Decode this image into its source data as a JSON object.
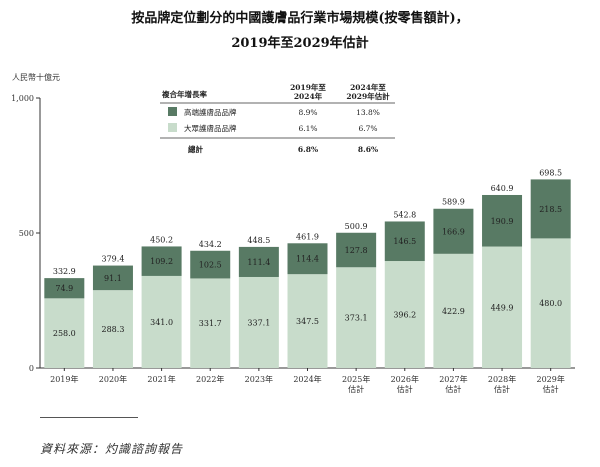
{
  "chart_data": {
    "type": "bar",
    "stacked": true,
    "title_line1": "按品牌定位劃分的中國護膚品行業市場規模(按零售額計)，",
    "title_line2": "2019年至2029年估計",
    "ylabel": "人民幣十億元",
    "ylim": [
      0,
      1000
    ],
    "yticks": [
      "0",
      "500",
      "1,000"
    ],
    "ytick_values": [
      0,
      500,
      1000
    ],
    "categories": [
      [
        "2019年"
      ],
      [
        "2020年"
      ],
      [
        "2021年"
      ],
      [
        "2022年"
      ],
      [
        "2023年"
      ],
      [
        "2024年"
      ],
      [
        "2025年",
        "估計"
      ],
      [
        "2026年",
        "估計"
      ],
      [
        "2027年",
        "估計"
      ],
      [
        "2028年",
        "估計"
      ],
      [
        "2029年",
        "估計"
      ]
    ],
    "series": [
      {
        "name": "大眾護膚品品牌",
        "color": "#c8dccb",
        "values": [
          258.0,
          288.3,
          341.0,
          331.7,
          337.1,
          347.5,
          373.1,
          396.2,
          422.9,
          449.9,
          480.0
        ],
        "labels": [
          "258.0",
          "288.3",
          "341.0",
          "331.7",
          "337.1",
          "347.5",
          "373.1",
          "396.2",
          "422.9",
          "449.9",
          "480.0"
        ]
      },
      {
        "name": "高端護膚品品牌",
        "color": "#587a64",
        "values": [
          74.9,
          91.1,
          109.2,
          102.5,
          111.4,
          114.4,
          127.8,
          146.5,
          166.9,
          190.9,
          218.5
        ],
        "labels": [
          "74.9",
          "91.1",
          "109.2",
          "102.5",
          "111.4",
          "114.4",
          "127.8",
          "146.5",
          "166.9",
          "190.9",
          "218.5"
        ]
      }
    ],
    "totals": [
      332.9,
      379.4,
      450.2,
      434.2,
      448.5,
      461.9,
      500.9,
      542.8,
      589.9,
      640.9,
      698.5
    ],
    "total_labels": [
      "332.9",
      "379.4",
      "450.2",
      "434.2",
      "448.5",
      "461.9",
      "500.9",
      "542.8",
      "589.9",
      "640.9",
      "698.5"
    ],
    "legend_table": {
      "header": "複合年增長率",
      "col1_lines": [
        "2019年至",
        "2024年"
      ],
      "col2_lines": [
        "2024年至",
        "2029年估計"
      ],
      "rows": [
        {
          "name": "高端護膚品品牌",
          "color": "#587a64",
          "c1": "8.9%",
          "c2": "13.8%"
        },
        {
          "name": "大眾護膚品品牌",
          "color": "#c8dccb",
          "c1": "6.1%",
          "c2": "6.7%"
        }
      ],
      "total_label": "總計",
      "total_c1": "6.8%",
      "total_c2": "8.6%"
    }
  },
  "source": "資料來源：灼識諮詢報告"
}
